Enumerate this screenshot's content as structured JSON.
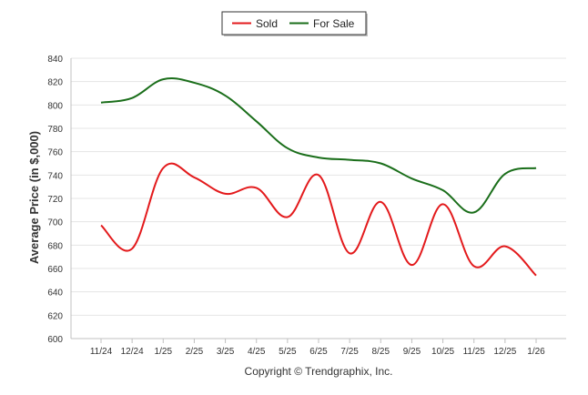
{
  "chart_data": {
    "type": "line",
    "title": "",
    "xlabel": "",
    "ylabel": "Average Price (in $,000)",
    "ylim": [
      600,
      840
    ],
    "ytick_step": 20,
    "grid": true,
    "legend": "top-center",
    "categories": [
      "11/24",
      "12/24",
      "1/25",
      "2/25",
      "3/25",
      "4/25",
      "5/25",
      "6/25",
      "7/25",
      "8/25",
      "9/25",
      "10/25",
      "11/25",
      "12/25",
      "1/26"
    ],
    "series": [
      {
        "name": "Sold",
        "color": "#e31a1c",
        "values": [
          697,
          677,
          746,
          738,
          724,
          729,
          704,
          740,
          673,
          717,
          663,
          715,
          662,
          679,
          654
        ]
      },
      {
        "name": "For Sale",
        "color": "#1a6e1a",
        "values": [
          802,
          806,
          822,
          819,
          808,
          786,
          763,
          755,
          753,
          750,
          737,
          727,
          708,
          741,
          746
        ]
      }
    ]
  },
  "footer": {
    "copyright": "Copyright © Trendgraphix, Inc."
  }
}
